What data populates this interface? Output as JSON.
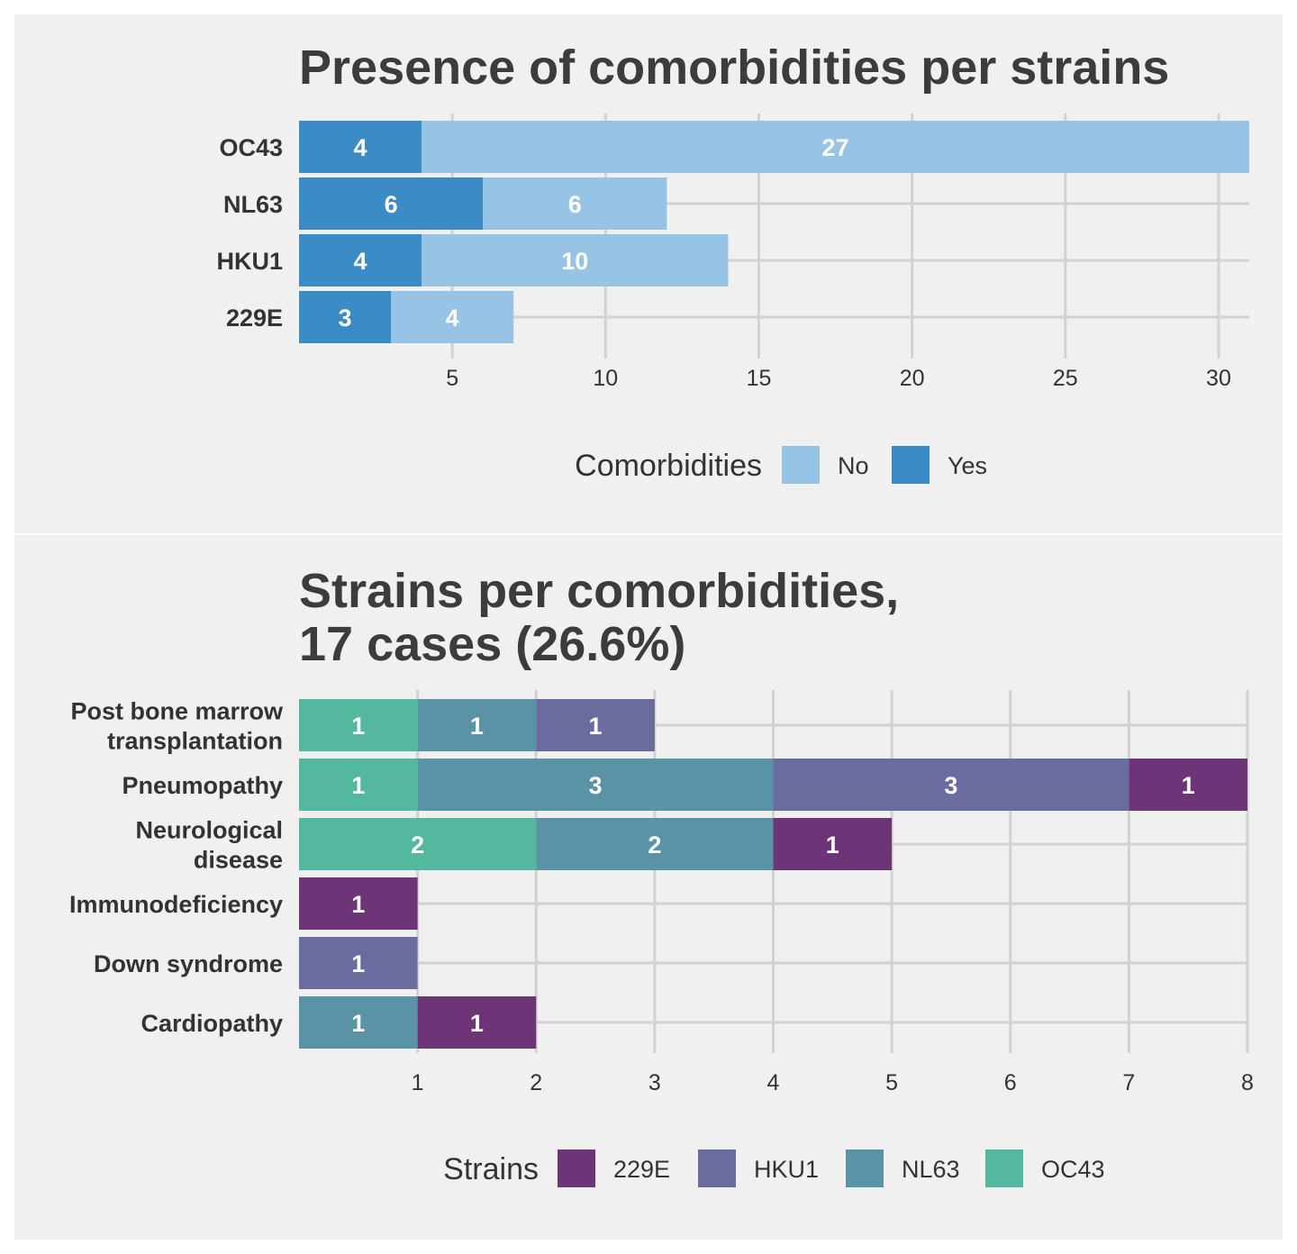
{
  "chart_data": [
    {
      "type": "bar",
      "orientation": "horizontal",
      "stacked": true,
      "title": "Presence of comorbidities per strains",
      "categories": [
        "OC43",
        "NL63",
        "HKU1",
        "229E"
      ],
      "series": [
        {
          "name": "Yes",
          "color": "#3b8bc6",
          "values": [
            4,
            6,
            4,
            3
          ]
        },
        {
          "name": "No",
          "color": "#97c3e4",
          "values": [
            27,
            6,
            10,
            4
          ]
        }
      ],
      "xticks": [
        5,
        10,
        15,
        20,
        25,
        30
      ],
      "xlim": [
        0,
        31
      ],
      "grid": true,
      "legend": {
        "title": "Comorbidities",
        "placement": "bottom",
        "items": [
          "No",
          "Yes"
        ]
      }
    },
    {
      "type": "bar",
      "orientation": "horizontal",
      "stacked": true,
      "title_lines": [
        "Strains per comorbidities,",
        "17 cases (26.6%)"
      ],
      "categories": [
        [
          "Post bone marrow",
          "transplantation"
        ],
        [
          "Pneumopathy"
        ],
        [
          "Neurological",
          "disease"
        ],
        [
          "Immunodeficiency"
        ],
        [
          "Down syndrome"
        ],
        [
          "Cardiopathy"
        ]
      ],
      "series": [
        {
          "name": "OC43",
          "color": "#53b89e",
          "values": [
            1,
            1,
            2,
            0,
            0,
            0
          ]
        },
        {
          "name": "NL63",
          "color": "#5a93a5",
          "values": [
            1,
            3,
            2,
            0,
            0,
            1
          ]
        },
        {
          "name": "HKU1",
          "color": "#6a6c9f",
          "values": [
            1,
            3,
            0,
            0,
            1,
            0
          ]
        },
        {
          "name": "229E",
          "color": "#6d3578",
          "values": [
            0,
            1,
            1,
            1,
            0,
            1
          ]
        }
      ],
      "xticks": [
        1,
        2,
        3,
        4,
        5,
        6,
        7,
        8
      ],
      "xlim": [
        0,
        8
      ],
      "grid": true,
      "legend": {
        "title": "Strains",
        "placement": "bottom",
        "items": [
          "229E",
          "HKU1",
          "NL63",
          "OC43"
        ]
      }
    }
  ]
}
